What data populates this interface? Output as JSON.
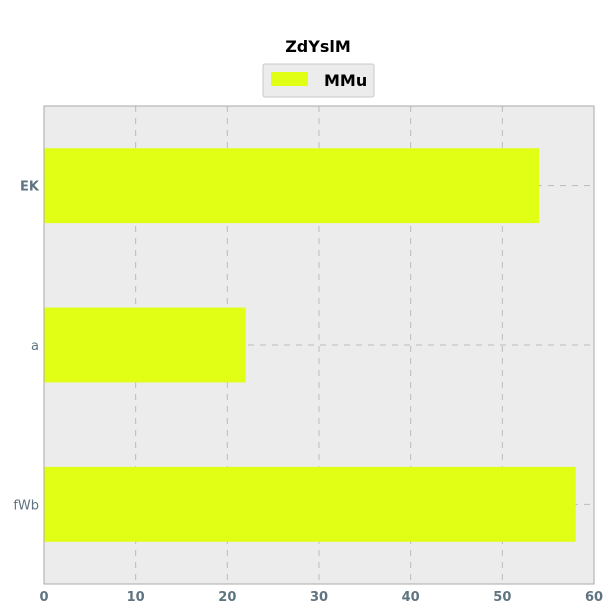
{
  "chart_data": {
    "type": "bar",
    "orientation": "horizontal",
    "title": "ZdYslM",
    "xlabel": "",
    "ylabel": "",
    "categories": [
      "EK",
      "a",
      "fWb"
    ],
    "series": [
      {
        "name": "MMu",
        "values": [
          54,
          22,
          58
        ]
      }
    ],
    "xlim": [
      0,
      60
    ],
    "xticks": [
      0,
      10,
      20,
      30,
      40,
      50,
      60
    ],
    "xtick_labels": [
      "0",
      "10",
      "20",
      "30",
      "40",
      "50",
      "60"
    ],
    "grid": true,
    "legend_position": "top-center",
    "colors": {
      "bar": "#e0ff14",
      "plot_background": "#ececec",
      "grid": "#bbbbbb",
      "tick_text": "#5f7481",
      "frame": "#aaaaaa"
    }
  }
}
